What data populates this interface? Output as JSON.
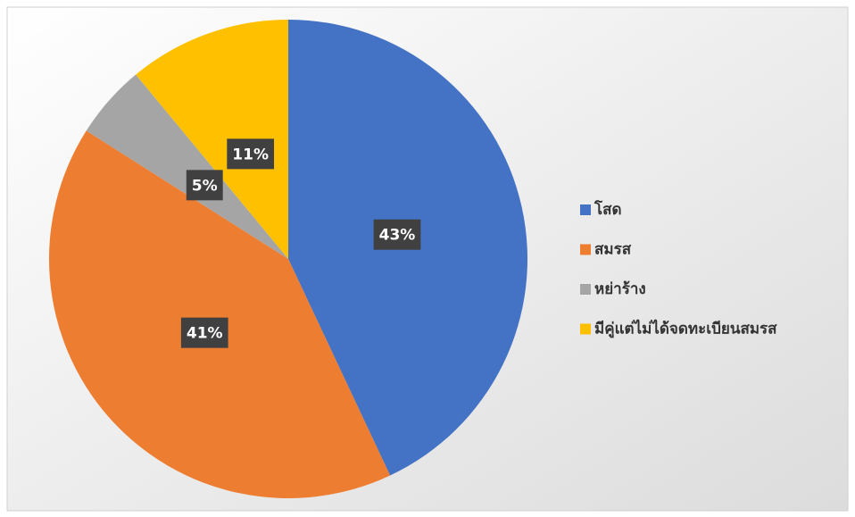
{
  "chart_data": {
    "type": "pie",
    "categories": [
      "โสด",
      "สมรส",
      "หย่าร้าง",
      "มีคู่แต่ไม่ได้จดทะเบียนสมรส"
    ],
    "values": [
      43,
      41,
      5,
      11
    ],
    "value_labels": [
      "43%",
      "41%",
      "5%",
      "11%"
    ],
    "colors": [
      "#4472c4",
      "#ed7d31",
      "#a5a5a5",
      "#ffc000"
    ],
    "legend": "right"
  }
}
